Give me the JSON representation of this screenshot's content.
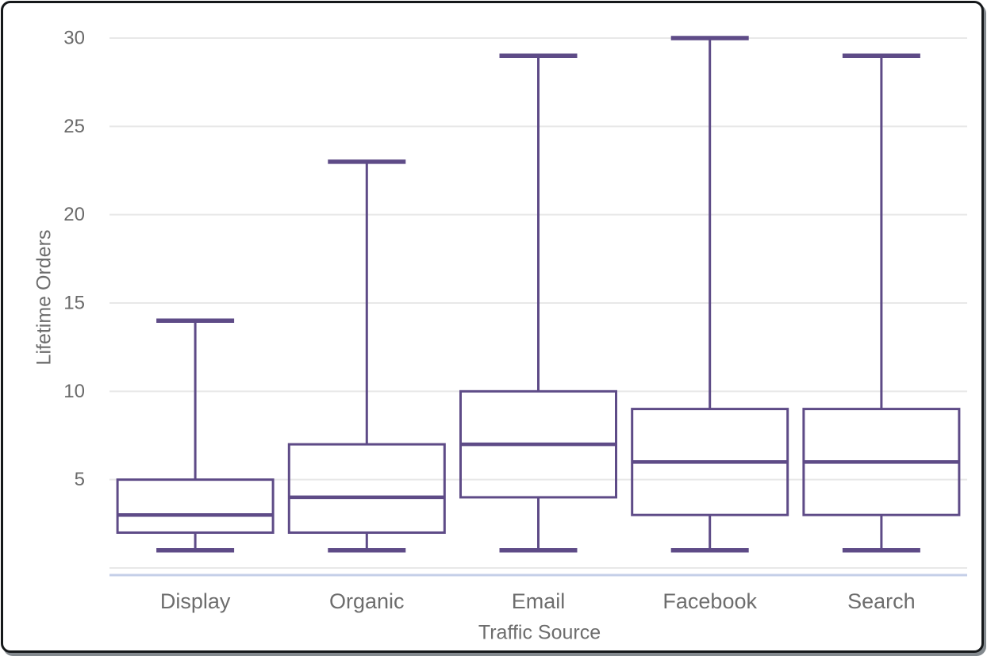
{
  "chart_data": {
    "type": "boxplot",
    "title": "",
    "xlabel": "Traffic Source",
    "ylabel": "Lifetime Orders",
    "ylim": [
      0,
      30
    ],
    "yticks": [
      5,
      10,
      15,
      20,
      25,
      30
    ],
    "grid": true,
    "legend_position": "none",
    "categories": [
      "Display",
      "Organic",
      "Email",
      "Facebook",
      "Search"
    ],
    "series": [
      {
        "category": "Display",
        "min": 1,
        "q1": 2,
        "median": 3,
        "q3": 5,
        "max": 14
      },
      {
        "category": "Organic",
        "min": 1,
        "q1": 2,
        "median": 4,
        "q3": 7,
        "max": 23
      },
      {
        "category": "Email",
        "min": 1,
        "q1": 4,
        "median": 7,
        "q3": 10,
        "max": 29
      },
      {
        "category": "Facebook",
        "min": 1,
        "q1": 3,
        "median": 6,
        "q3": 9,
        "max": 30
      },
      {
        "category": "Search",
        "min": 1,
        "q1": 3,
        "median": 6,
        "q3": 9,
        "max": 29
      }
    ],
    "colors": {
      "box_stroke": "#5e4b87",
      "median_stroke": "#5e4b87",
      "gridline": "#e8e8e8",
      "axis_line": "#c5cfe8",
      "tick_text": "#6a6a6a",
      "label_text": "#6d6d6d",
      "background": "#ffffff",
      "frame_border": "#15181a"
    }
  }
}
